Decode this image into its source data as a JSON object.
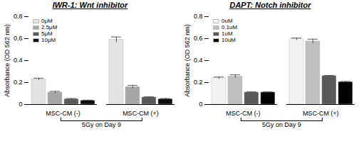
{
  "chart_data": [
    {
      "type": "bar",
      "title": "IWR-1: Wnt inhibitor",
      "ylabel": "Absorbance (OD 562 nm)",
      "categories": [
        "MSC-CM (-)",
        "MSC-CM (+)"
      ],
      "annotation": "5Gy on Day 9",
      "series": [
        {
          "name": "0μM",
          "color": "#e3e3e3",
          "values": [
            0.23,
            0.59
          ],
          "errors": [
            0.01,
            0.025
          ]
        },
        {
          "name": "2.5μM",
          "color": "#a6a6a6",
          "values": [
            0.11,
            0.16
          ],
          "errors": [
            0.01,
            0.015
          ]
        },
        {
          "name": "5μM",
          "color": "#595959",
          "values": [
            0.05,
            0.065
          ],
          "errors": [
            0.005,
            0.005
          ]
        },
        {
          "name": "10μM",
          "color": "#0d0d0d",
          "values": [
            0.035,
            0.05
          ],
          "errors": [
            0.005,
            0.005
          ]
        }
      ],
      "ylim": [
        0,
        0.8
      ],
      "yticks": [
        0,
        0.2,
        0.4,
        0.6,
        0.8
      ],
      "legend": "top-left",
      "grid": false
    },
    {
      "type": "bar",
      "title": "DAPT: Notch inhibitor",
      "ylabel": "Absorbance (OD 562 nm)",
      "categories": [
        "MSC-CM (-)",
        "MSC-CM (+)"
      ],
      "annotation": "5Gy on Day 9",
      "series": [
        {
          "name": "0uM",
          "color": "#f2f2f2",
          "values": [
            0.24,
            0.595
          ],
          "errors": [
            0.01,
            0.01
          ]
        },
        {
          "name": "0.1uM",
          "color": "#bfbfbf",
          "values": [
            0.255,
            0.575
          ],
          "errors": [
            0.015,
            0.02
          ]
        },
        {
          "name": "1uM",
          "color": "#595959",
          "values": [
            0.11,
            0.26
          ],
          "errors": [
            0.005,
            0.005
          ]
        },
        {
          "name": "10uM",
          "color": "#000000",
          "values": [
            0.11,
            0.205
          ],
          "errors": [
            0.005,
            0.005
          ]
        }
      ],
      "ylim": [
        0,
        0.8
      ],
      "yticks": [
        0,
        0.2,
        0.4,
        0.6,
        0.8
      ],
      "legend": "top-left",
      "grid": false
    }
  ]
}
